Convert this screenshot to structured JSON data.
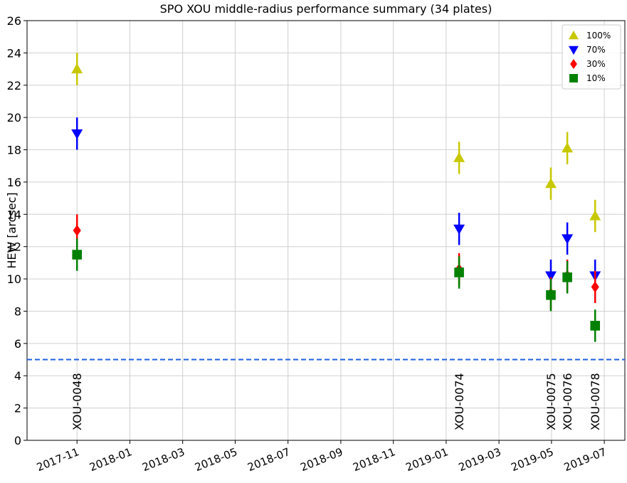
{
  "chart_data": {
    "type": "errorbar",
    "title": "SPO XOU middle-radius performance summary (34 plates)",
    "y_label": "HEW [arcsec]",
    "x": [
      2017.833,
      2019.041,
      2019.331,
      2019.383,
      2019.471
    ],
    "series": [
      {
        "name": "100%",
        "color": "#c8c800",
        "marker": "triangle-up",
        "values": [
          23.0,
          17.5,
          15.9,
          18.1,
          13.9
        ],
        "errors": [
          1.0,
          1.0,
          1.0,
          1.0,
          1.0
        ]
      },
      {
        "name": "70%",
        "color": "#0000ff",
        "marker": "triangle-down",
        "values": [
          19.0,
          13.1,
          10.2,
          12.5,
          10.2
        ],
        "errors": [
          1.0,
          1.0,
          1.0,
          1.0,
          1.0
        ]
      },
      {
        "name": "30%",
        "color": "#ff0000",
        "marker": "diamond",
        "values": [
          13.0,
          10.6,
          9.1,
          10.2,
          9.5
        ],
        "errors": [
          1.0,
          1.0,
          1.0,
          1.0,
          1.0
        ]
      },
      {
        "name": "10%",
        "color": "#008000",
        "marker": "square",
        "values": [
          11.5,
          10.4,
          9.0,
          10.1,
          7.1
        ],
        "errors": [
          1.0,
          1.0,
          1.0,
          1.0,
          1.0
        ]
      }
    ],
    "annotations": [
      {
        "text": "XOU-0048",
        "x": 2017.833
      },
      {
        "text": "XOU-0074",
        "x": 2019.041
      },
      {
        "text": "XOU-0075",
        "x": 2019.331
      },
      {
        "text": "XOU-0076",
        "x": 2019.383
      },
      {
        "text": "XOU-0078",
        "x": 2019.471
      }
    ],
    "hline": {
      "y": 5,
      "color": "#1f5fe0",
      "style": "dashed"
    },
    "xlim": [
      2017.675,
      2019.565
    ],
    "xticks": [
      {
        "value": 2017.833,
        "label": "2017-11"
      },
      {
        "value": 2018.0,
        "label": "2018-01"
      },
      {
        "value": 2018.167,
        "label": "2018-03"
      },
      {
        "value": 2018.333,
        "label": "2018-05"
      },
      {
        "value": 2018.5,
        "label": "2018-07"
      },
      {
        "value": 2018.667,
        "label": "2018-09"
      },
      {
        "value": 2018.833,
        "label": "2018-11"
      },
      {
        "value": 2019.0,
        "label": "2019-01"
      },
      {
        "value": 2019.167,
        "label": "2019-03"
      },
      {
        "value": 2019.333,
        "label": "2019-05"
      },
      {
        "value": 2019.5,
        "label": "2019-07"
      }
    ],
    "ylim": [
      0,
      26
    ],
    "yticks": [
      0,
      2,
      4,
      6,
      8,
      10,
      12,
      14,
      16,
      18,
      20,
      22,
      24,
      26
    ],
    "grid": true,
    "legend": "upper right"
  }
}
